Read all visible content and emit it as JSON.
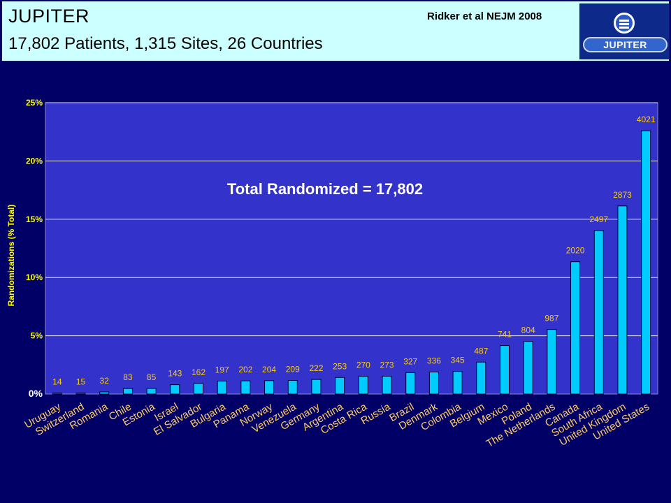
{
  "header": {
    "title": "JUPITER",
    "subtitle": "17,802 Patients, 1,315 Sites, 26 Countries",
    "citation": "Ridker et al NEJM 2008",
    "logo_text": "JUPITER"
  },
  "colors": {
    "background": "#000066",
    "plot_area": "#3333cc",
    "bar": "#00ccff",
    "axis_text": "#ffff00",
    "category_text": "#ffcc66",
    "value_label": "#ffcc00",
    "header_bg": "#ccffff"
  },
  "chart_data": {
    "type": "bar",
    "title": "",
    "annotation": "Total Randomized = 17,802",
    "xlabel": "",
    "ylabel": "Randomizations (% Total)",
    "ylim": [
      0,
      25
    ],
    "yticks": [
      "0%",
      "5%",
      "10%",
      "15%",
      "20%",
      "25%"
    ],
    "yticks_values": [
      0,
      5,
      10,
      15,
      20,
      25
    ],
    "grid": true,
    "categories": [
      "Uruguay",
      "Switzerland",
      "Romania",
      "Chile",
      "Estonia",
      "Israel",
      "El Salvador",
      "Bulgaria",
      "Panama",
      "Norway",
      "Venezuela",
      "Germany",
      "Argentina",
      "Costa Rica",
      "Russia",
      "Brazil",
      "Denmark",
      "Colombia",
      "Belgium",
      "Mexico",
      "Poland",
      "The Netherlands",
      "Canada",
      "South Africa",
      "United Kingdom",
      "United States"
    ],
    "data_labels": [
      "14",
      "15",
      "32",
      "83",
      "85",
      "143",
      "162",
      "197",
      "202",
      "204",
      "209",
      "222",
      "253",
      "270",
      "273",
      "327",
      "336",
      "345",
      "487",
      "741",
      "804",
      "987",
      "2020",
      "2497",
      "2873",
      "4021"
    ],
    "counts": [
      14,
      15,
      32,
      83,
      85,
      143,
      162,
      197,
      202,
      204,
      209,
      222,
      253,
      270,
      273,
      327,
      336,
      345,
      487,
      741,
      804,
      987,
      2020,
      2497,
      2873,
      4021
    ],
    "values": [
      0.08,
      0.08,
      0.18,
      0.47,
      0.48,
      0.8,
      0.91,
      1.11,
      1.13,
      1.15,
      1.17,
      1.25,
      1.42,
      1.52,
      1.53,
      1.84,
      1.89,
      1.94,
      2.74,
      4.16,
      4.52,
      5.54,
      11.35,
      14.03,
      16.14,
      22.59
    ]
  }
}
